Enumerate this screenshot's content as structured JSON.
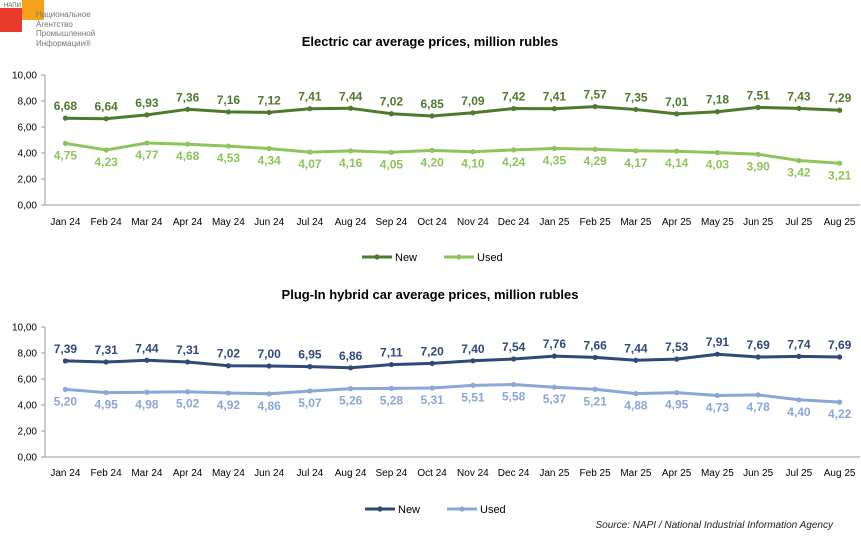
{
  "logo": {
    "tag": "НАПИ",
    "text": "Национальное\nАгентство\nПромышленной\nИнформации®"
  },
  "source": "Source: NAPI / National Industrial Information Agency",
  "chart_data": [
    {
      "type": "line",
      "title": "Electric car average prices, million rubles",
      "categories": [
        "Jan 24",
        "Feb 24",
        "Mar 24",
        "Apr 24",
        "May 24",
        "Jun 24",
        "Jul 24",
        "Aug 24",
        "Sep 24",
        "Oct 24",
        "Nov 24",
        "Dec 24",
        "Jan 25",
        "Feb 25",
        "Mar 25",
        "Apr 25",
        "May 25",
        "Jun 25",
        "Jul 25",
        "Aug 25"
      ],
      "ylim": [
        0,
        10
      ],
      "yticks": [
        "0,00",
        "2,00",
        "4,00",
        "6,00",
        "8,00",
        "10,00"
      ],
      "grid": false,
      "legend": "bottom",
      "series": [
        {
          "name": "New",
          "color": "#4e7a2e",
          "values": [
            6.68,
            6.64,
            6.93,
            7.36,
            7.16,
            7.12,
            7.41,
            7.44,
            7.02,
            6.85,
            7.09,
            7.42,
            7.41,
            7.57,
            7.35,
            7.01,
            7.18,
            7.51,
            7.43,
            7.29
          ],
          "labels": [
            "6,68",
            "6,64",
            "6,93",
            "7,36",
            "7,16",
            "7,12",
            "7,41",
            "7,44",
            "7,02",
            "6,85",
            "7,09",
            "7,42",
            "7,41",
            "7,57",
            "7,35",
            "7,01",
            "7,18",
            "7,51",
            "7,43",
            "7,29"
          ]
        },
        {
          "name": "Used",
          "color": "#8dc55a",
          "values": [
            4.75,
            4.23,
            4.77,
            4.68,
            4.53,
            4.34,
            4.07,
            4.16,
            4.05,
            4.2,
            4.1,
            4.24,
            4.35,
            4.29,
            4.17,
            4.14,
            4.03,
            3.9,
            3.42,
            3.21
          ],
          "labels": [
            "4,75",
            "4,23",
            "4,77",
            "4,68",
            "4,53",
            "4,34",
            "4,07",
            "4,16",
            "4,05",
            "4,20",
            "4,10",
            "4,24",
            "4,35",
            "4,29",
            "4,17",
            "4,14",
            "4,03",
            "3,90",
            "3,42",
            "3,21"
          ]
        }
      ]
    },
    {
      "type": "line",
      "title": "Plug-In hybrid car average prices, million rubles",
      "categories": [
        "Jan 24",
        "Feb 24",
        "Mar 24",
        "Apr 24",
        "May 24",
        "Jun 24",
        "Jul 24",
        "Aug 24",
        "Sep 24",
        "Oct 24",
        "Nov 24",
        "Dec 24",
        "Jan 25",
        "Feb 25",
        "Mar 25",
        "Apr 25",
        "May 25",
        "Jun 25",
        "Jul 25",
        "Aug 25"
      ],
      "ylim": [
        0,
        10
      ],
      "yticks": [
        "0,00",
        "2,00",
        "4,00",
        "6,00",
        "8,00",
        "10,00"
      ],
      "grid": false,
      "legend": "bottom",
      "series": [
        {
          "name": "New",
          "color": "#2f4a7a",
          "values": [
            7.39,
            7.31,
            7.44,
            7.31,
            7.02,
            7.0,
            6.95,
            6.86,
            7.11,
            7.2,
            7.4,
            7.54,
            7.76,
            7.66,
            7.44,
            7.53,
            7.91,
            7.69,
            7.74,
            7.69
          ],
          "labels": [
            "7,39",
            "7,31",
            "7,44",
            "7,31",
            "7,02",
            "7,00",
            "6,95",
            "6,86",
            "7,11",
            "7,20",
            "7,40",
            "7,54",
            "7,76",
            "7,66",
            "7,44",
            "7,53",
            "7,91",
            "7,69",
            "7,74",
            "7,69"
          ]
        },
        {
          "name": "Used",
          "color": "#8aa7d8",
          "values": [
            5.2,
            4.95,
            4.98,
            5.02,
            4.92,
            4.86,
            5.07,
            5.26,
            5.28,
            5.31,
            5.51,
            5.58,
            5.37,
            5.21,
            4.88,
            4.95,
            4.73,
            4.78,
            4.4,
            4.22
          ],
          "labels": [
            "5,20",
            "4,95",
            "4,98",
            "5,02",
            "4,92",
            "4,86",
            "5,07",
            "5,26",
            "5,28",
            "5,31",
            "5,51",
            "5,58",
            "5,37",
            "5,21",
            "4,88",
            "4,95",
            "4,73",
            "4,78",
            "4,40",
            "4,22"
          ]
        }
      ]
    }
  ]
}
